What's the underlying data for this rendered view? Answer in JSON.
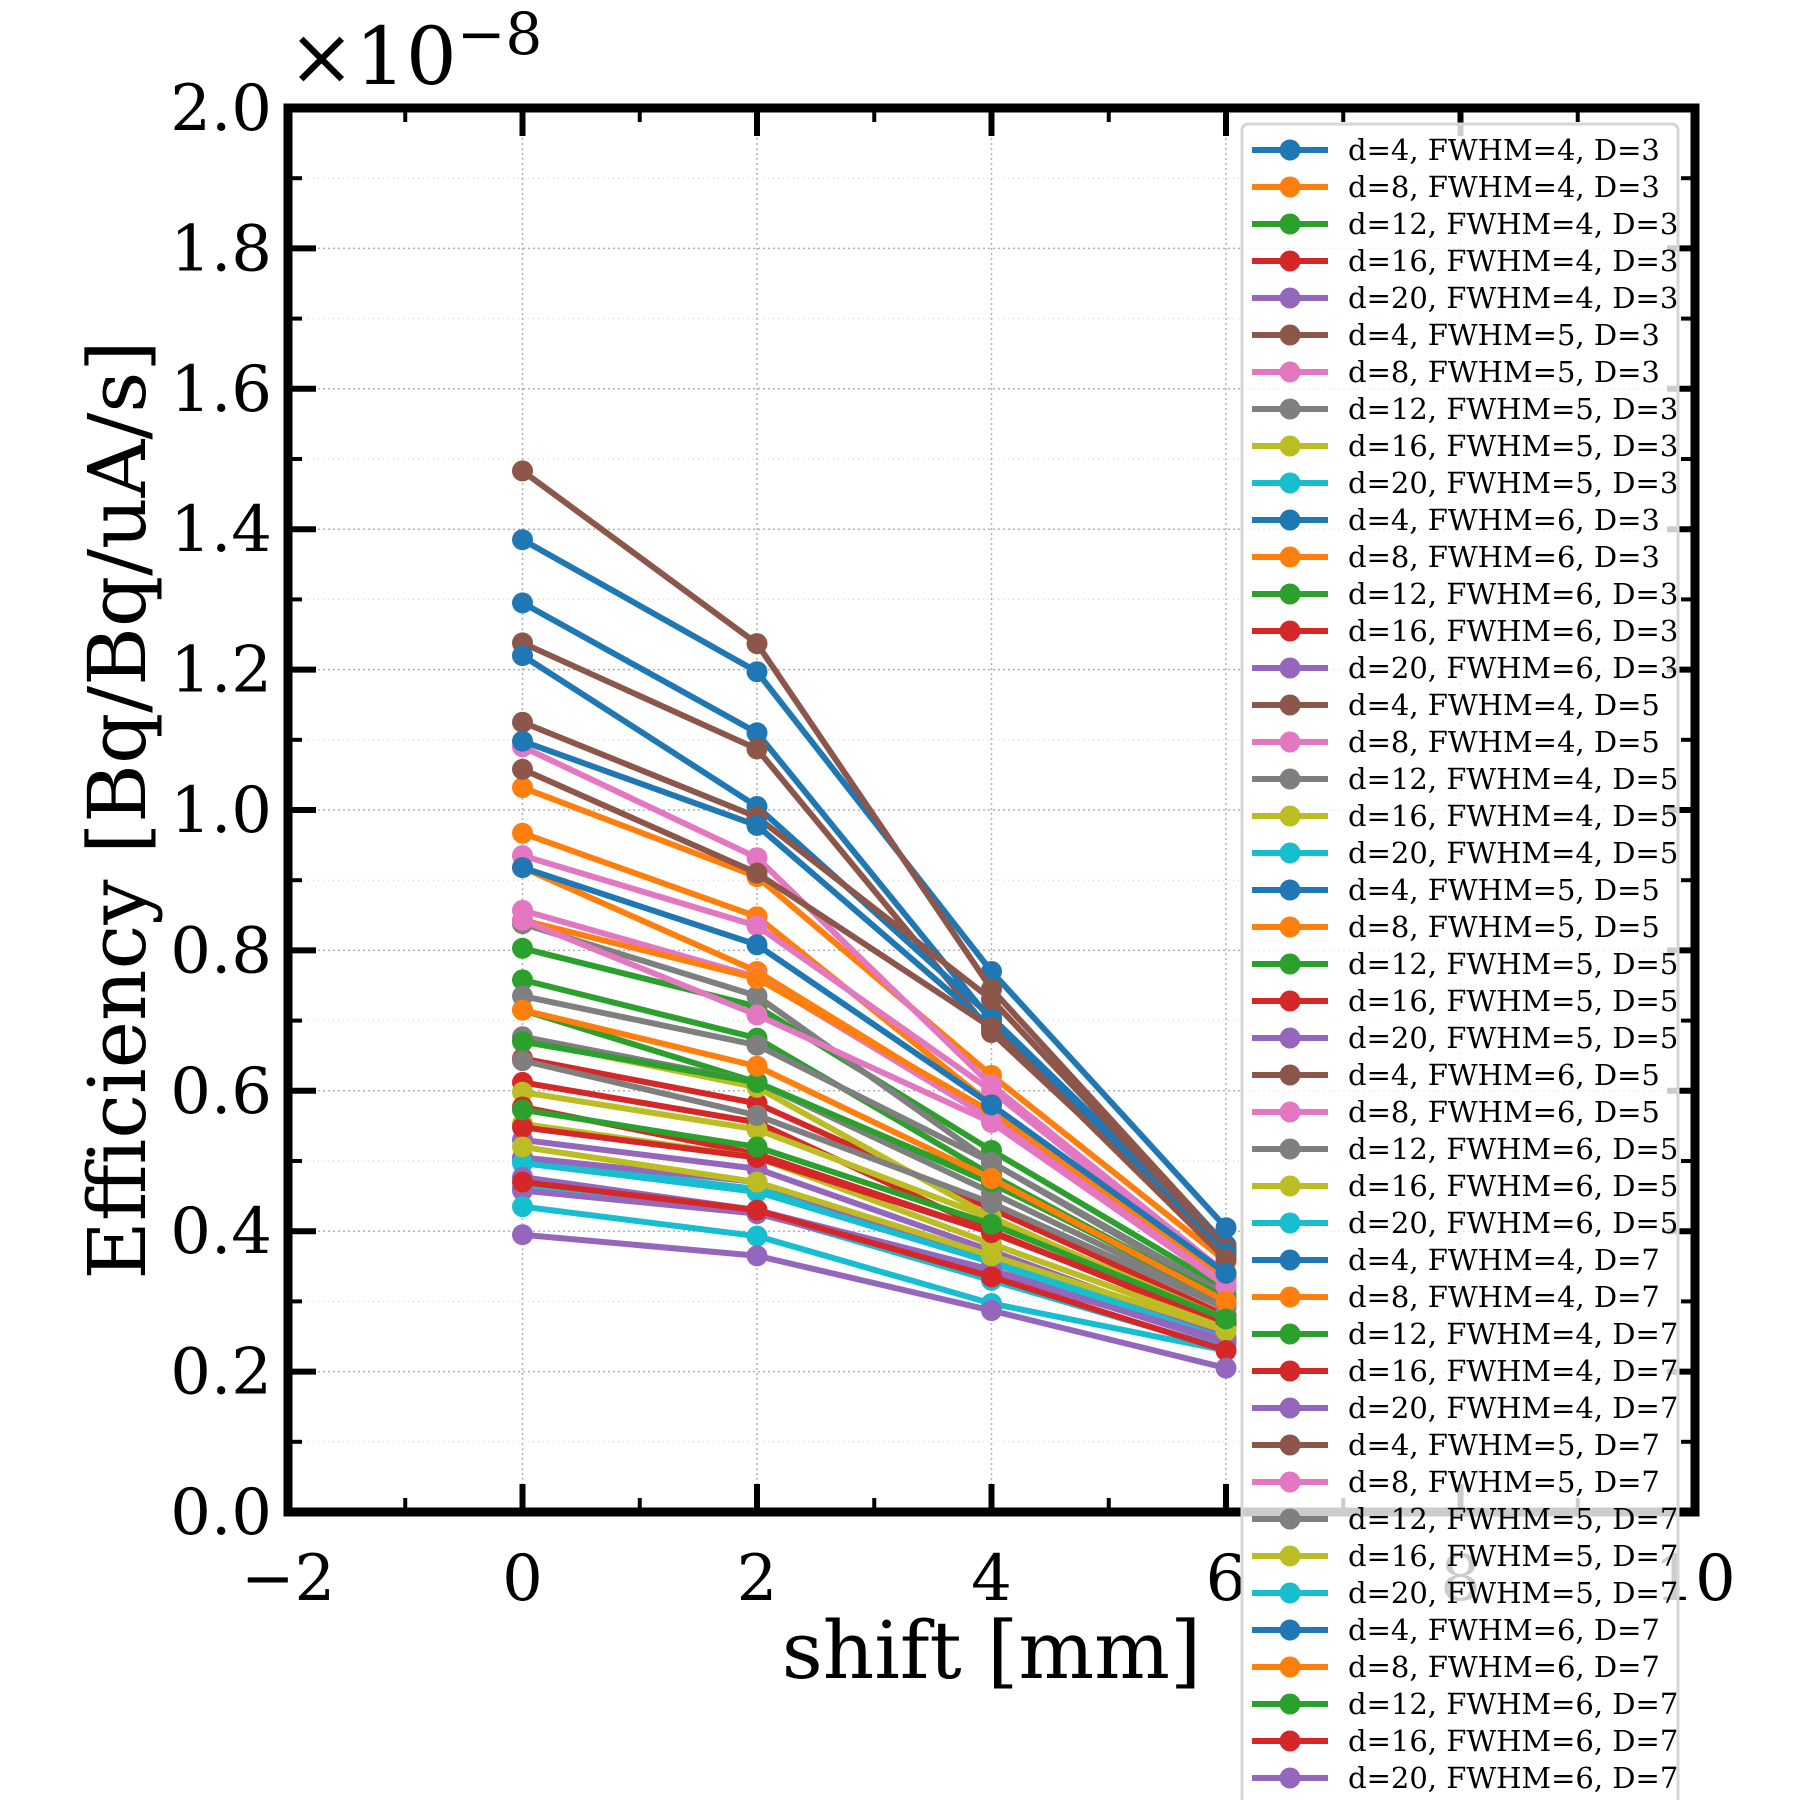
{
  "chart_data": {
    "type": "line",
    "title": "",
    "xlabel": "shift [mm]",
    "ylabel": "Efficiency [Bq/Bq/uA/s]",
    "y_exponent_label": "×10−8",
    "y_exponent_base": "×10",
    "y_exponent_power": "−8",
    "xlim": [
      -2,
      10
    ],
    "ylim": [
      0.0,
      2.0
    ],
    "x_ticks": [
      "−2",
      "0",
      "2",
      "4",
      "6",
      "8",
      "10"
    ],
    "x_tick_values": [
      -2,
      0,
      2,
      4,
      6,
      8,
      10
    ],
    "y_ticks": [
      "0.0",
      "0.2",
      "0.4",
      "0.6",
      "0.8",
      "1.0",
      "1.2",
      "1.4",
      "1.6",
      "1.8",
      "2.0"
    ],
    "y_tick_values": [
      0.0,
      0.2,
      0.4,
      0.6,
      0.8,
      1.0,
      1.2,
      1.4,
      1.6,
      1.8,
      2.0
    ],
    "grid": true,
    "legend_position": "top-right",
    "x": [
      0,
      2,
      4,
      6
    ],
    "series": [
      {
        "name": "d=4, FWHM=4, D=3",
        "color": "#1f77b4",
        "values": [
          1.385,
          1.197,
          0.77,
          0.405
        ]
      },
      {
        "name": "d=8, FWHM=4, D=3",
        "color": "#ff7f0e",
        "values": [
          1.032,
          0.905,
          0.622,
          0.357
        ]
      },
      {
        "name": "d=12, FWHM=4, D=3",
        "color": "#2ca02c",
        "values": [
          0.803,
          0.72,
          0.515,
          0.318
        ]
      },
      {
        "name": "d=16, FWHM=4, D=3",
        "color": "#d62728",
        "values": [
          0.646,
          0.582,
          0.432,
          0.28
        ]
      },
      {
        "name": "d=20, FWHM=4, D=3",
        "color": "#9467bd",
        "values": [
          0.53,
          0.489,
          0.372,
          0.25
        ]
      },
      {
        "name": "d=4, FWHM=5, D=3",
        "color": "#8c564b",
        "values": [
          1.483,
          1.237,
          0.745,
          0.38
        ]
      },
      {
        "name": "d=8, FWHM=5, D=3",
        "color": "#e377c2",
        "values": [
          1.09,
          0.932,
          0.608,
          0.34
        ]
      },
      {
        "name": "d=12, FWHM=5, D=3",
        "color": "#7f7f7f",
        "values": [
          0.838,
          0.735,
          0.498,
          0.305
        ]
      },
      {
        "name": "d=16, FWHM=5, D=3",
        "color": "#bcbd22",
        "values": [
          0.673,
          0.605,
          0.42,
          0.27
        ]
      },
      {
        "name": "d=20, FWHM=5, D=3",
        "color": "#17becf",
        "values": [
          0.5,
          0.46,
          0.36,
          0.245
        ]
      },
      {
        "name": "d=4, FWHM=6, D=3",
        "color": "#1f77b4",
        "values": [
          1.295,
          1.11,
          0.7,
          0.365
        ]
      },
      {
        "name": "d=8, FWHM=6, D=3",
        "color": "#ff7f0e",
        "values": [
          0.967,
          0.848,
          0.58,
          0.33
        ]
      },
      {
        "name": "d=12, FWHM=6, D=3",
        "color": "#2ca02c",
        "values": [
          0.758,
          0.675,
          0.48,
          0.3
        ]
      },
      {
        "name": "d=16, FWHM=6, D=3",
        "color": "#d62728",
        "values": [
          0.612,
          0.555,
          0.4,
          0.265
        ]
      },
      {
        "name": "d=20, FWHM=6, D=3",
        "color": "#9467bd",
        "values": [
          0.505,
          0.47,
          0.355,
          0.24
        ]
      },
      {
        "name": "d=4, FWHM=4, D=5",
        "color": "#8c564b",
        "values": [
          1.238,
          1.087,
          0.683,
          0.372
        ]
      },
      {
        "name": "d=8, FWHM=4, D=5",
        "color": "#e377c2",
        "values": [
          0.935,
          0.835,
          0.6,
          0.335
        ]
      },
      {
        "name": "d=12, FWHM=4, D=5",
        "color": "#7f7f7f",
        "values": [
          0.735,
          0.665,
          0.498,
          0.31
        ]
      },
      {
        "name": "d=16, FWHM=4, D=5",
        "color": "#bcbd22",
        "values": [
          0.598,
          0.545,
          0.418,
          0.275
        ]
      },
      {
        "name": "d=20, FWHM=4, D=5",
        "color": "#17becf",
        "values": [
          0.497,
          0.456,
          0.356,
          0.24
        ]
      },
      {
        "name": "d=4, FWHM=5, D=5",
        "color": "#1f77b4",
        "values": [
          1.22,
          1.005,
          0.705,
          0.38
        ]
      },
      {
        "name": "d=8, FWHM=5, D=5",
        "color": "#ff7f0e",
        "values": [
          0.918,
          0.77,
          0.565,
          0.34
        ]
      },
      {
        "name": "d=12, FWHM=5, D=5",
        "color": "#2ca02c",
        "values": [
          0.715,
          0.612,
          0.468,
          0.305
        ]
      },
      {
        "name": "d=16, FWHM=5, D=5",
        "color": "#d62728",
        "values": [
          0.577,
          0.51,
          0.398,
          0.272
        ]
      },
      {
        "name": "d=20, FWHM=5, D=5",
        "color": "#9467bd",
        "values": [
          0.477,
          0.43,
          0.345,
          0.24
        ]
      },
      {
        "name": "d=4, FWHM=6, D=5",
        "color": "#8c564b",
        "values": [
          1.125,
          0.99,
          0.73,
          0.375
        ]
      },
      {
        "name": "d=8, FWHM=6, D=5",
        "color": "#e377c2",
        "values": [
          0.857,
          0.762,
          0.56,
          0.33
        ]
      },
      {
        "name": "d=12, FWHM=6, D=5",
        "color": "#7f7f7f",
        "values": [
          0.677,
          0.612,
          0.455,
          0.295
        ]
      },
      {
        "name": "d=16, FWHM=6, D=5",
        "color": "#bcbd22",
        "values": [
          0.553,
          0.505,
          0.382,
          0.262
        ]
      },
      {
        "name": "d=20, FWHM=6, D=5",
        "color": "#17becf",
        "values": [
          0.462,
          0.427,
          0.33,
          0.232
        ]
      },
      {
        "name": "d=4, FWHM=4, D=7",
        "color": "#1f77b4",
        "values": [
          1.098,
          0.978,
          0.69,
          0.368
        ]
      },
      {
        "name": "d=8, FWHM=4, D=7",
        "color": "#ff7f0e",
        "values": [
          0.843,
          0.76,
          0.57,
          0.335
        ]
      },
      {
        "name": "d=12, FWHM=4, D=7",
        "color": "#2ca02c",
        "values": [
          0.67,
          0.612,
          0.47,
          0.3
        ]
      },
      {
        "name": "d=16, FWHM=4, D=7",
        "color": "#d62728",
        "values": [
          0.548,
          0.505,
          0.398,
          0.27
        ]
      },
      {
        "name": "d=20, FWHM=4, D=7",
        "color": "#9467bd",
        "values": [
          0.458,
          0.425,
          0.34,
          0.245
        ]
      },
      {
        "name": "d=4, FWHM=5, D=7",
        "color": "#8c564b",
        "values": [
          1.058,
          0.91,
          0.69,
          0.36
        ]
      },
      {
        "name": "d=8, FWHM=5, D=7",
        "color": "#e377c2",
        "values": [
          0.843,
          0.708,
          0.555,
          0.322
        ]
      },
      {
        "name": "d=12, FWHM=5, D=7",
        "color": "#7f7f7f",
        "values": [
          0.643,
          0.565,
          0.44,
          0.29
        ]
      },
      {
        "name": "d=16, FWHM=5, D=7",
        "color": "#bcbd22",
        "values": [
          0.52,
          0.47,
          0.365,
          0.258
        ]
      },
      {
        "name": "d=20, FWHM=5, D=7",
        "color": "#17becf",
        "values": [
          0.435,
          0.393,
          0.297,
          0.23
        ]
      },
      {
        "name": "d=4, FWHM=6, D=7",
        "color": "#1f77b4",
        "values": [
          0.918,
          0.808,
          0.58,
          0.34
        ]
      },
      {
        "name": "d=8, FWHM=6, D=7",
        "color": "#ff7f0e",
        "values": [
          0.715,
          0.635,
          0.475,
          0.3
        ]
      },
      {
        "name": "d=12, FWHM=6, D=7",
        "color": "#2ca02c",
        "values": [
          0.573,
          0.52,
          0.41,
          0.275
        ]
      },
      {
        "name": "d=16, FWHM=6, D=7",
        "color": "#d62728",
        "values": [
          0.47,
          0.43,
          0.335,
          0.23
        ]
      },
      {
        "name": "d=20, FWHM=6, D=7",
        "color": "#9467bd",
        "values": [
          0.395,
          0.365,
          0.287,
          0.205
        ]
      }
    ]
  }
}
